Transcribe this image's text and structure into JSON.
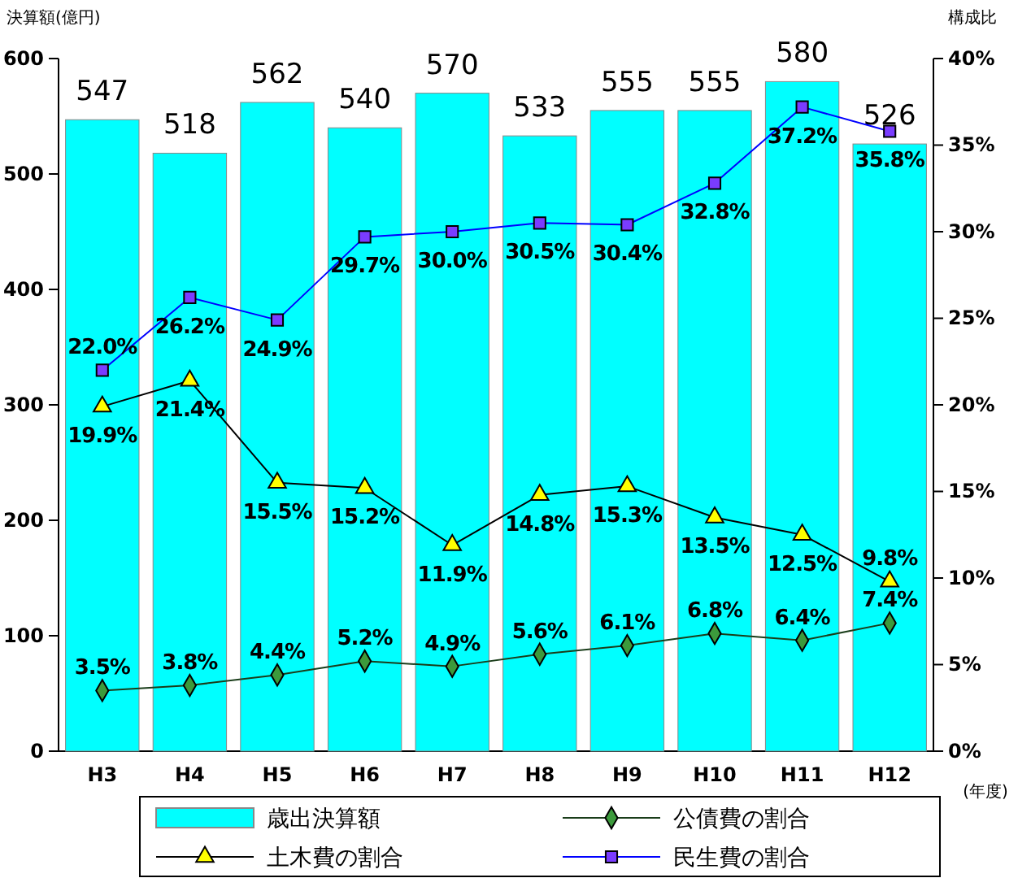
{
  "chart_data": {
    "type": "bar",
    "ylabel": "決算額(億円)",
    "y2label": "構成比",
    "xlabel": "(年度)",
    "categories": [
      "H3",
      "H4",
      "H5",
      "H6",
      "H7",
      "H8",
      "H9",
      "H10",
      "H11",
      "H12"
    ],
    "series": [
      {
        "name": "歳出決算額",
        "color": "#00ffff",
        "values": [
          547,
          518,
          562,
          540,
          570,
          533,
          555,
          555,
          580,
          526
        ],
        "value_labels": [
          "547",
          "518",
          "562",
          "540",
          "570",
          "533",
          "555",
          "555",
          "580",
          "526"
        ]
      },
      {
        "name": "公債費の割合",
        "type": "line",
        "axis": "y2",
        "marker": "diamond",
        "color": "#1a3d1a",
        "values": [
          3.5,
          3.8,
          4.4,
          5.2,
          4.9,
          5.6,
          6.1,
          6.8,
          6.4,
          7.4
        ],
        "value_labels": [
          "3.5%",
          "3.8%",
          "4.4%",
          "5.2%",
          "4.9%",
          "5.6%",
          "6.1%",
          "6.8%",
          "6.4%",
          "7.4%"
        ]
      },
      {
        "name": "土木費の割合",
        "type": "line",
        "axis": "y2",
        "marker": "triangle",
        "color": "#000000",
        "values": [
          19.9,
          21.4,
          15.5,
          15.2,
          11.9,
          14.8,
          15.3,
          13.5,
          12.5,
          9.8
        ],
        "value_labels": [
          "19.9%",
          "21.4%",
          "15.5%",
          "15.2%",
          "11.9%",
          "14.8%",
          "15.3%",
          "13.5%",
          "12.5%",
          "9.8%"
        ]
      },
      {
        "name": "民生費の割合",
        "type": "line",
        "axis": "y2",
        "marker": "square",
        "color": "#0000ff",
        "values": [
          22.0,
          26.2,
          24.9,
          29.7,
          30.0,
          30.5,
          30.4,
          32.8,
          37.2,
          35.8
        ],
        "value_labels": [
          "22.0%",
          "26.2%",
          "24.9%",
          "29.7%",
          "30.0%",
          "30.5%",
          "30.4%",
          "32.8%",
          "37.2%",
          "35.8%"
        ]
      }
    ],
    "ylim": [
      0,
      600
    ],
    "yticks": [
      0,
      100,
      200,
      300,
      400,
      500,
      600
    ],
    "y2lim": [
      0,
      40
    ],
    "y2ticks": [
      {
        "value": 0,
        "label": "0%"
      },
      {
        "value": 5,
        "label": "5%"
      },
      {
        "value": 10,
        "label": "10%"
      },
      {
        "value": 15,
        "label": "15%"
      },
      {
        "value": 20,
        "label": "20%"
      },
      {
        "value": 25,
        "label": "25%"
      },
      {
        "value": 30,
        "label": "30%"
      },
      {
        "value": 35,
        "label": "35%"
      },
      {
        "value": 40,
        "label": "40%"
      }
    ],
    "grid": false,
    "legend": "bottom"
  }
}
